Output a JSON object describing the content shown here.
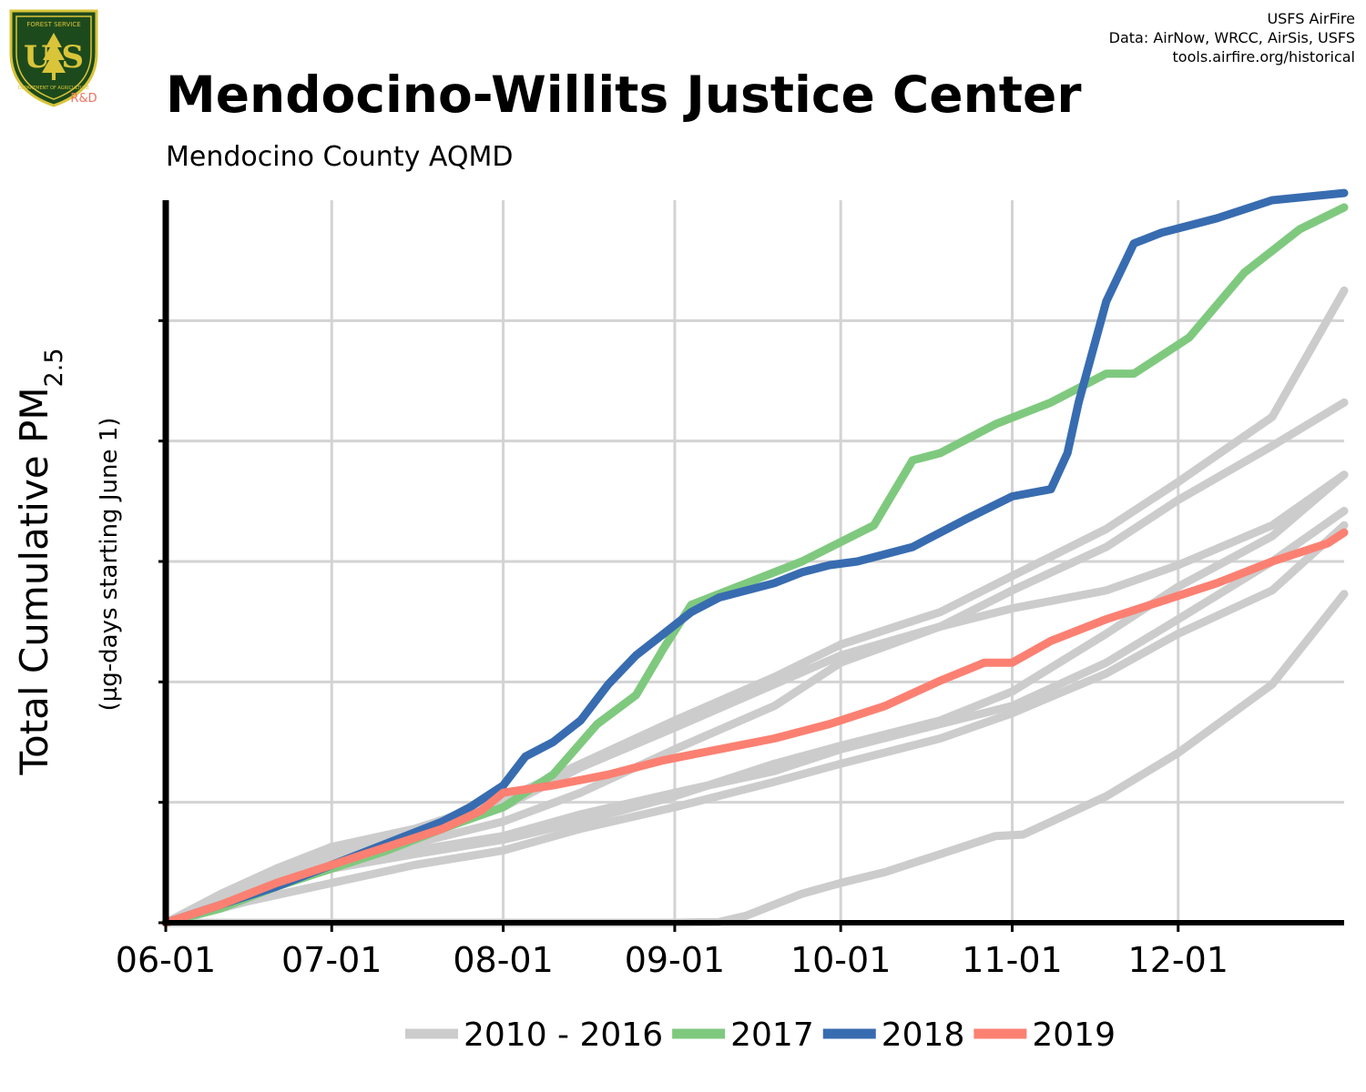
{
  "header": {
    "credit_lines": [
      "USFS AirFire",
      "Data: AirNow, WRCC, AirSis, USFS",
      "tools.airfire.org/historical"
    ],
    "logo_label": "R&D",
    "logo_text": "U S",
    "logo_top_text": "FOREST SERVICE",
    "logo_bottom_text": "DEPARTMENT OF AGRICULTURE"
  },
  "chart_data": {
    "type": "line",
    "title": "Mendocino-Willits Justice Center",
    "subtitle": "Mendocino County AQMD",
    "ylabel_main": "Total Cumulative PM",
    "ylabel_sub": "2.5",
    "ylabel_units": "(µg-days starting June 1)",
    "x_tick_labels": [
      "06-01",
      "07-01",
      "08-01",
      "09-01",
      "10-01",
      "11-01",
      "12-01"
    ],
    "x_tick_days": [
      0,
      30,
      61,
      92,
      122,
      153,
      183
    ],
    "xlim": [
      0,
      213
    ],
    "ylim": [
      0,
      1000
    ],
    "y_tick_count": 6,
    "grid": true,
    "legend_position": "bottom",
    "colors": {
      "background_years": "#cccccc",
      "2017": "#7fc97f",
      "2018": "#386cb0",
      "2019": "#fb8072"
    },
    "series": [
      {
        "name": "2010 - 2016",
        "group": "background",
        "x": [
          0,
          10,
          20,
          30,
          45,
          61,
          75,
          92,
          110,
          122,
          140,
          153,
          170,
          183,
          200,
          213
        ],
        "y": [
          0,
          40,
          75,
          105,
          130,
          170,
          220,
          280,
          340,
          385,
          430,
          480,
          545,
          610,
          700,
          875
        ]
      },
      {
        "name": "2010 - 2016",
        "group": "background",
        "x": [
          0,
          10,
          20,
          30,
          45,
          61,
          75,
          92,
          110,
          122,
          140,
          153,
          170,
          183,
          200,
          213
        ],
        "y": [
          0,
          35,
          65,
          95,
          120,
          160,
          215,
          270,
          330,
          370,
          410,
          460,
          520,
          585,
          660,
          720
        ]
      },
      {
        "name": "2010 - 2016",
        "group": "background",
        "x": [
          0,
          15,
          30,
          45,
          61,
          75,
          92,
          110,
          122,
          140,
          153,
          170,
          183,
          200,
          213
        ],
        "y": [
          0,
          50,
          85,
          110,
          140,
          180,
          240,
          300,
          360,
          410,
          435,
          460,
          495,
          550,
          620
        ]
      },
      {
        "name": "2010 - 2016",
        "group": "background",
        "x": [
          0,
          15,
          30,
          45,
          61,
          75,
          92,
          110,
          122,
          140,
          153,
          170,
          183,
          200,
          213
        ],
        "y": [
          0,
          40,
          75,
          100,
          120,
          150,
          180,
          210,
          240,
          275,
          300,
          360,
          420,
          500,
          570
        ]
      },
      {
        "name": "2010 - 2016",
        "group": "background",
        "x": [
          0,
          15,
          30,
          45,
          61,
          75,
          92,
          110,
          122,
          140,
          153,
          170,
          183,
          200,
          213
        ],
        "y": [
          0,
          45,
          75,
          95,
          115,
          140,
          175,
          220,
          245,
          280,
          320,
          400,
          465,
          535,
          620
        ]
      },
      {
        "name": "2010 - 2016",
        "group": "background",
        "x": [
          0,
          15,
          30,
          45,
          61,
          75,
          92,
          110,
          122,
          140,
          153,
          170,
          183,
          200,
          213
        ],
        "y": [
          0,
          30,
          55,
          80,
          100,
          130,
          160,
          195,
          220,
          255,
          290,
          345,
          400,
          460,
          550
        ]
      },
      {
        "name": "2010 - 2016",
        "group": "background",
        "x": [
          0,
          30,
          61,
          92,
          100,
          105,
          110,
          115,
          122,
          130,
          140,
          150,
          155,
          170,
          183,
          200,
          213
        ],
        "y": [
          0,
          0,
          0,
          0,
          1,
          10,
          25,
          40,
          55,
          70,
          95,
          120,
          122,
          175,
          235,
          330,
          455
        ]
      },
      {
        "name": "2017",
        "x": [
          0,
          10,
          20,
          30,
          40,
          50,
          61,
          70,
          78,
          85,
          90,
          95,
          105,
          115,
          128,
          135,
          140,
          150,
          160,
          170,
          175,
          185,
          195,
          205,
          213
        ],
        "y": [
          0,
          20,
          50,
          75,
          100,
          130,
          160,
          205,
          275,
          315,
          380,
          440,
          470,
          500,
          550,
          640,
          650,
          690,
          720,
          760,
          760,
          810,
          900,
          960,
          990
        ]
      },
      {
        "name": "2018",
        "x": [
          0,
          10,
          20,
          30,
          40,
          50,
          55,
          61,
          65,
          70,
          75,
          80,
          85,
          90,
          95,
          100,
          110,
          115,
          120,
          125,
          135,
          145,
          153,
          160,
          163,
          165,
          170,
          175,
          180,
          190,
          200,
          213
        ],
        "y": [
          0,
          25,
          50,
          80,
          110,
          140,
          160,
          190,
          230,
          250,
          280,
          330,
          370,
          400,
          430,
          450,
          470,
          485,
          495,
          500,
          520,
          560,
          590,
          600,
          650,
          720,
          860,
          940,
          955,
          975,
          1000,
          1010
        ]
      },
      {
        "name": "2019",
        "x": [
          0,
          10,
          20,
          30,
          40,
          50,
          57,
          61,
          70,
          80,
          90,
          100,
          110,
          120,
          130,
          140,
          148,
          153,
          160,
          170,
          180,
          190,
          200,
          210,
          213
        ],
        "y": [
          0,
          25,
          55,
          80,
          105,
          130,
          155,
          180,
          190,
          205,
          225,
          240,
          255,
          275,
          300,
          335,
          360,
          360,
          390,
          420,
          445,
          470,
          500,
          525,
          540
        ]
      }
    ],
    "legend": [
      {
        "label": "2010 - 2016",
        "color": "#cccccc"
      },
      {
        "label": "2017",
        "color": "#7fc97f"
      },
      {
        "label": "2018",
        "color": "#386cb0"
      },
      {
        "label": "2019",
        "color": "#fb8072"
      }
    ]
  }
}
